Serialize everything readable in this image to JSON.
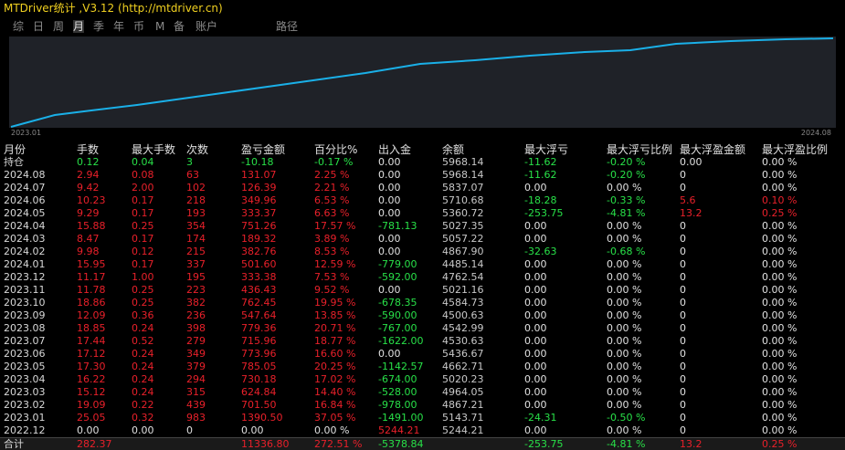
{
  "header": {
    "title": "MTDriver统计 ,V3.12 (http://mtdriver.cn)",
    "tabs": [
      "综",
      "日",
      "周",
      "月",
      "季",
      "年",
      "币",
      "M",
      "备",
      "账户",
      "路径"
    ],
    "active_tab": 3
  },
  "chart": {
    "x_start": "2023.01",
    "x_end": "2024.08"
  },
  "colors": {
    "positive": "#e8202a",
    "negative": "#28e048",
    "zero": "#e0e0e0",
    "balance": "#c8c8c8",
    "open": "#28e048"
  },
  "table": {
    "columns": [
      "月份",
      "手数",
      "最大手数",
      "次数",
      "盈亏金额",
      "百分比%",
      "出入金",
      "余额",
      "最大浮亏",
      "最大浮亏比例",
      "最大浮盈金额",
      "最大浮盈比例"
    ],
    "rows": [
      [
        "持仓",
        "0.12",
        "0.04",
        "3",
        "-10.18",
        "-0.17 %",
        "0.00",
        "5968.14",
        "-11.62",
        "-0.20 %",
        "0.00",
        "0.00 %"
      ],
      [
        "2024.08",
        "2.94",
        "0.08",
        "63",
        "131.07",
        "2.25 %",
        "0.00",
        "5968.14",
        "-11.62",
        "-0.20 %",
        "0",
        "0.00 %"
      ],
      [
        "2024.07",
        "9.42",
        "2.00",
        "102",
        "126.39",
        "2.21 %",
        "0.00",
        "5837.07",
        "0.00",
        "0.00 %",
        "0",
        "0.00 %"
      ],
      [
        "2024.06",
        "10.23",
        "0.17",
        "218",
        "349.96",
        "6.53 %",
        "0.00",
        "5710.68",
        "-18.28",
        "-0.33 %",
        "5.6",
        "0.10 %"
      ],
      [
        "2024.05",
        "9.29",
        "0.17",
        "193",
        "333.37",
        "6.63 %",
        "0.00",
        "5360.72",
        "-253.75",
        "-4.81 %",
        "13.2",
        "0.25 %"
      ],
      [
        "2024.04",
        "15.88",
        "0.25",
        "354",
        "751.26",
        "17.57 %",
        "-781.13",
        "5027.35",
        "0.00",
        "0.00 %",
        "0",
        "0.00 %"
      ],
      [
        "2024.03",
        "8.47",
        "0.17",
        "174",
        "189.32",
        "3.89 %",
        "0.00",
        "5057.22",
        "0.00",
        "0.00 %",
        "0",
        "0.00 %"
      ],
      [
        "2024.02",
        "9.98",
        "0.12",
        "215",
        "382.76",
        "8.53 %",
        "0.00",
        "4867.90",
        "-32.63",
        "-0.68 %",
        "0",
        "0.00 %"
      ],
      [
        "2024.01",
        "15.95",
        "0.17",
        "337",
        "501.60",
        "12.59 %",
        "-779.00",
        "4485.14",
        "0.00",
        "0.00 %",
        "0",
        "0.00 %"
      ],
      [
        "2023.12",
        "11.17",
        "1.00",
        "195",
        "333.38",
        "7.53 %",
        "-592.00",
        "4762.54",
        "0.00",
        "0.00 %",
        "0",
        "0.00 %"
      ],
      [
        "2023.11",
        "11.78",
        "0.25",
        "223",
        "436.43",
        "9.52 %",
        "0.00",
        "5021.16",
        "0.00",
        "0.00 %",
        "0",
        "0.00 %"
      ],
      [
        "2023.10",
        "18.86",
        "0.25",
        "382",
        "762.45",
        "19.95 %",
        "-678.35",
        "4584.73",
        "0.00",
        "0.00 %",
        "0",
        "0.00 %"
      ],
      [
        "2023.09",
        "12.09",
        "0.36",
        "236",
        "547.64",
        "13.85 %",
        "-590.00",
        "4500.63",
        "0.00",
        "0.00 %",
        "0",
        "0.00 %"
      ],
      [
        "2023.08",
        "18.85",
        "0.24",
        "398",
        "779.36",
        "20.71 %",
        "-767.00",
        "4542.99",
        "0.00",
        "0.00 %",
        "0",
        "0.00 %"
      ],
      [
        "2023.07",
        "17.44",
        "0.52",
        "279",
        "715.96",
        "18.77 %",
        "-1622.00",
        "4530.63",
        "0.00",
        "0.00 %",
        "0",
        "0.00 %"
      ],
      [
        "2023.06",
        "17.12",
        "0.24",
        "349",
        "773.96",
        "16.60 %",
        "0.00",
        "5436.67",
        "0.00",
        "0.00 %",
        "0",
        "0.00 %"
      ],
      [
        "2023.05",
        "17.30",
        "0.24",
        "379",
        "785.05",
        "20.25 %",
        "-1142.57",
        "4662.71",
        "0.00",
        "0.00 %",
        "0",
        "0.00 %"
      ],
      [
        "2023.04",
        "16.22",
        "0.24",
        "294",
        "730.18",
        "17.02 %",
        "-674.00",
        "5020.23",
        "0.00",
        "0.00 %",
        "0",
        "0.00 %"
      ],
      [
        "2023.03",
        "15.12",
        "0.24",
        "315",
        "624.84",
        "14.40 %",
        "-528.00",
        "4964.05",
        "0.00",
        "0.00 %",
        "0",
        "0.00 %"
      ],
      [
        "2023.02",
        "19.09",
        "0.22",
        "439",
        "701.50",
        "16.84 %",
        "-978.00",
        "4867.21",
        "0.00",
        "0.00 %",
        "0",
        "0.00 %"
      ],
      [
        "2023.01",
        "25.05",
        "0.32",
        "983",
        "1390.50",
        "37.05 %",
        "-1491.00",
        "5143.71",
        "-24.31",
        "-0.50 %",
        "0",
        "0.00 %"
      ],
      [
        "2022.12",
        "0.00",
        "0.00",
        "0",
        "0.00",
        "0.00 %",
        "5244.21",
        "5244.21",
        "0.00",
        "0.00 %",
        "0",
        "0.00 %"
      ]
    ],
    "total": [
      "合计",
      "282.37",
      "",
      "",
      "11336.80",
      "272.51 %",
      "-5378.84",
      "",
      "-253.75",
      "-4.81 %",
      "13.2",
      "0.25 %"
    ]
  }
}
